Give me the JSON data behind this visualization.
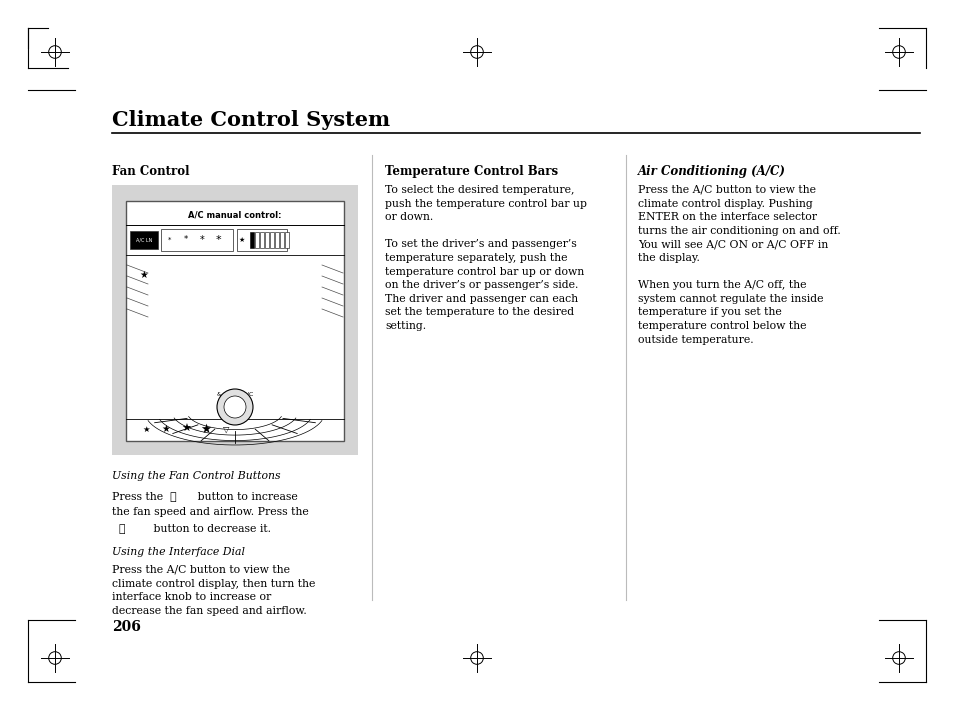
{
  "page_bg": "#ffffff",
  "title": "Climate Control System",
  "page_number": "206",
  "section1_heading": "Fan Control",
  "section2_heading": "Temperature Control Bars",
  "section3_heading": "Air Conditioning (A/C)",
  "section2_text": "To select the desired temperature,\npush the temperature control bar up\nor down.\n\nTo set the driver’s and passenger’s\ntemperature separately, push the\ntemperature control bar up or down\non the driver’s or passenger’s side.\nThe driver and passenger can each\nset the temperature to the desired\nsetting.",
  "section3_text": "Press the A/C button to view the\nclimate control display. Pushing\nENTER on the interface selector\nturns the air conditioning on and off.\nYou will see A/C ON or A/C OFF in\nthe display.\n\nWhen you turn the A/C off, the\nsystem cannot regulate the inside\ntemperature if you set the\ntemperature control below the\noutside temperature.",
  "fan_caption1": "Using the Fan Control Buttons",
  "fan_line1": "Press the  ✶      button to increase",
  "fan_line2": "the fan speed and airflow. Press the",
  "fan_line3": "  ✶        button to decrease it.",
  "fan_caption2": "Using the Interface Dial",
  "fan_text2": "Press the A/C button to view the\nclimate control display, then turn the\ninterface knob to increase or\ndecrease the fan speed and airflow."
}
